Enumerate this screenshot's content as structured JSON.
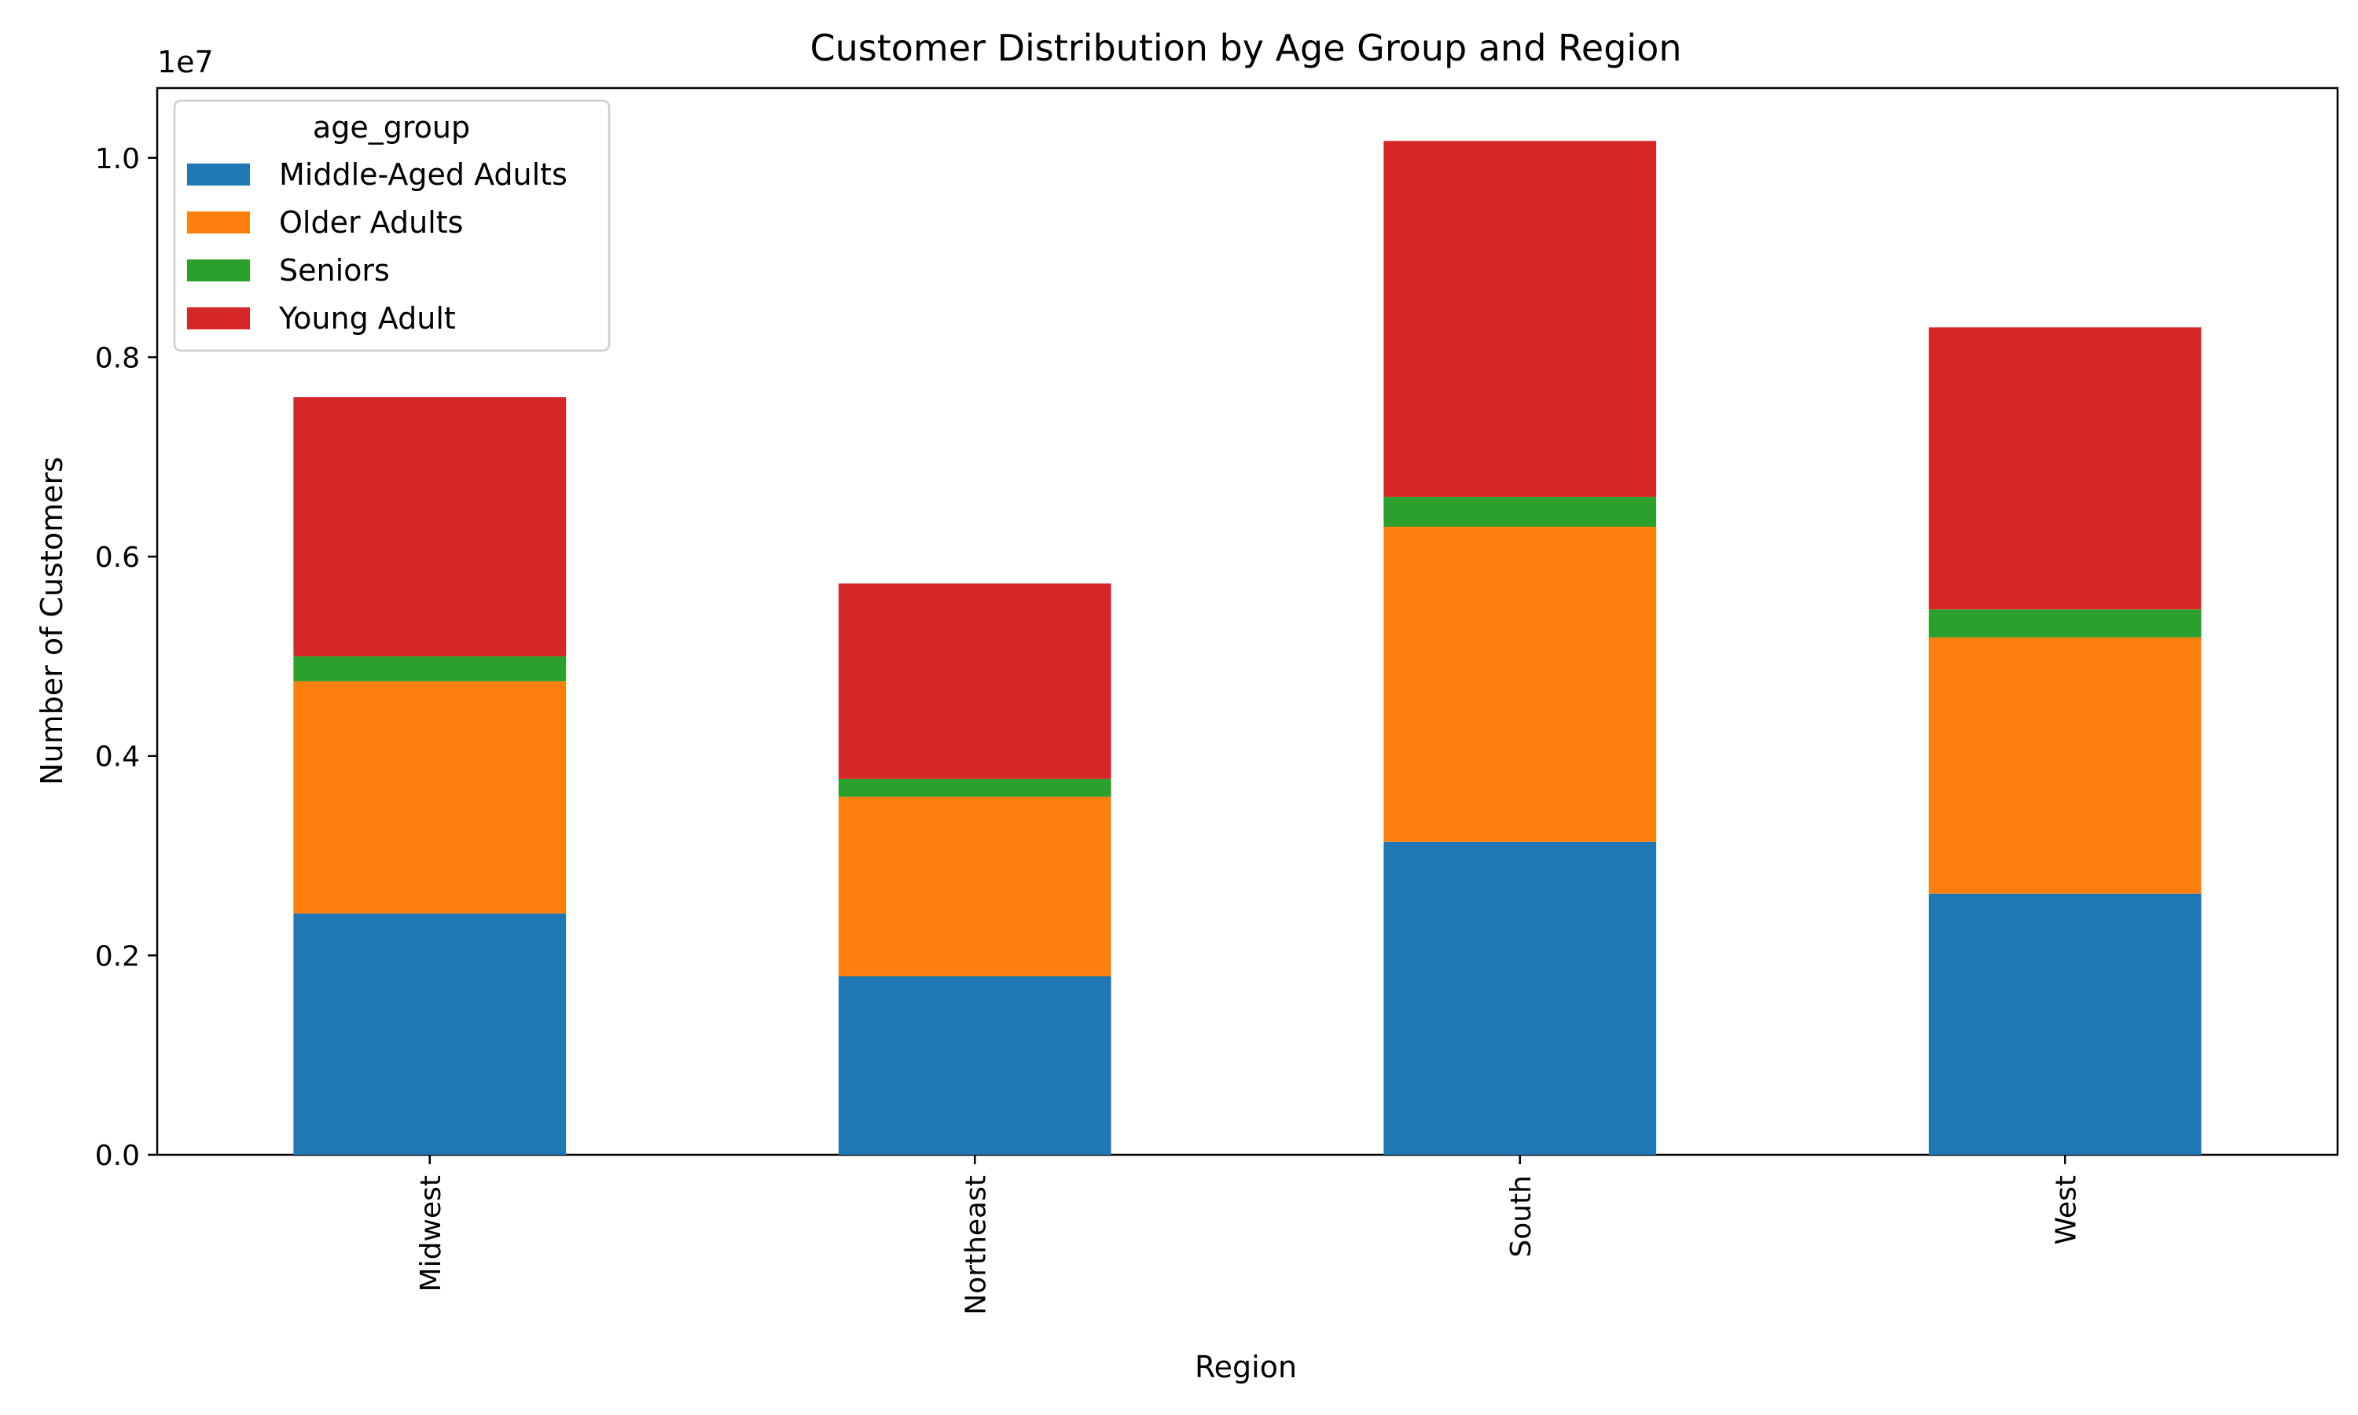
{
  "chart_data": {
    "type": "bar",
    "stacked": true,
    "title": "Customer Distribution by Age Group and Region",
    "xlabel": "Region",
    "ylabel": "Number of Customers",
    "y_offset_label": "1e7",
    "ylim": [
      0,
      10.7
    ],
    "y_ticks": [
      0.0,
      0.2,
      0.4,
      0.6,
      0.8,
      1.0
    ],
    "y_tick_labels": [
      "0.0",
      "0.2",
      "0.4",
      "0.6",
      "0.8",
      "1.0"
    ],
    "categories": [
      "Midwest",
      "Northeast",
      "South",
      "West"
    ],
    "legend": {
      "title": "age_group",
      "placement": "top-left"
    },
    "grid": false,
    "series": [
      {
        "name": "Middle-Aged Adults",
        "color": "#1f77b4",
        "values": [
          2.42,
          1.79,
          3.14,
          2.62
        ]
      },
      {
        "name": "Older Adults",
        "color": "#ff7f0e",
        "values": [
          2.33,
          1.8,
          3.16,
          2.57
        ]
      },
      {
        "name": "Seniors",
        "color": "#2ca02c",
        "values": [
          0.25,
          0.18,
          0.3,
          0.28
        ]
      },
      {
        "name": "Young Adult",
        "color": "#d62728",
        "values": [
          2.6,
          1.96,
          3.57,
          2.83
        ]
      }
    ]
  }
}
